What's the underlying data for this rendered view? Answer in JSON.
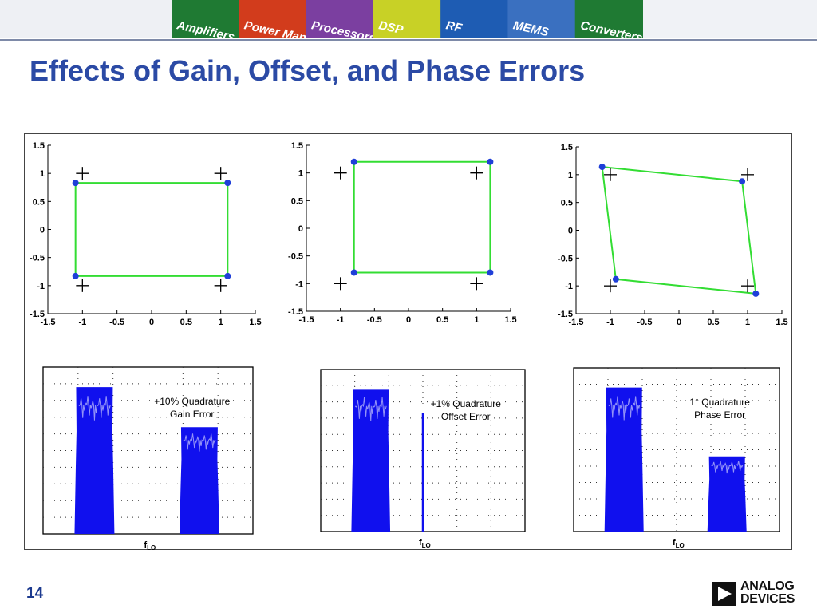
{
  "banner": {
    "labels": [
      "Amplifiers",
      "Power Management",
      "Processors",
      "DSP",
      "RF",
      "MEMS",
      "Converters"
    ],
    "colors": [
      "#1f7a33",
      "#d23c1c",
      "#7b3fa0",
      "#c8d126",
      "#1e5cb3",
      "#3a70c0"
    ]
  },
  "title": "Effects of Gain, Offset, and Phase Errors",
  "page_number": "14",
  "logo": {
    "line1": "ANALOG",
    "line2": "DEVICES"
  },
  "colors": {
    "constellation": "#33dd33",
    "points": "#1f3fd8",
    "spectrum": "#1010ee",
    "title": "#2b4aa5"
  },
  "chart_data": [
    {
      "type": "scatter",
      "xlim": [
        -1.5,
        1.5
      ],
      "ylim": [
        -1.5,
        1.5
      ],
      "xticks": [
        -1.5,
        -1,
        -0.5,
        0,
        0.5,
        1,
        1.5
      ],
      "yticks": [
        1.5,
        1,
        0.5,
        0,
        -0.5,
        -1,
        -1.5
      ],
      "xtick_labels": [
        "-1.5",
        "-1",
        "-0.5",
        "0",
        "0.5",
        "1",
        "1.5"
      ],
      "ytick_labels": [
        "1.5",
        "1",
        "0.5",
        "0",
        "-0.5",
        "-1",
        "-1.5"
      ],
      "ideal_points": [
        [
          -1,
          1
        ],
        [
          1,
          1
        ],
        [
          -1,
          -1
        ],
        [
          1,
          -1
        ]
      ],
      "measured_points": [
        [
          -1.1,
          0.83
        ],
        [
          1.1,
          0.83
        ],
        [
          1.1,
          -0.83
        ],
        [
          -1.1,
          -0.83
        ]
      ]
    },
    {
      "type": "scatter",
      "xlim": [
        -1.5,
        1.5
      ],
      "ylim": [
        -1.5,
        1.5
      ],
      "xticks": [
        -1.5,
        -1,
        -0.5,
        0,
        0.5,
        1,
        1.5
      ],
      "yticks": [
        1.5,
        1,
        0.5,
        0,
        -0.5,
        -1,
        -1.5
      ],
      "xtick_labels": [
        "-1.5",
        "-1",
        "-0.5",
        "0",
        "0.5",
        "1",
        "1.5"
      ],
      "ytick_labels": [
        "1.5",
        "1",
        "0.5",
        "0",
        "-0.5",
        "-1",
        "-1.5"
      ],
      "ideal_points": [
        [
          -1,
          1
        ],
        [
          1,
          1
        ],
        [
          -1,
          -1
        ],
        [
          1,
          -1
        ]
      ],
      "measured_points": [
        [
          -0.8,
          1.2
        ],
        [
          1.2,
          1.2
        ],
        [
          1.2,
          -0.8
        ],
        [
          -0.8,
          -0.8
        ]
      ]
    },
    {
      "type": "scatter",
      "xlim": [
        -1.5,
        1.5
      ],
      "ylim": [
        -1.5,
        1.5
      ],
      "xticks": [
        -1.5,
        -1,
        -0.5,
        0,
        0.5,
        1,
        1.5
      ],
      "yticks": [
        1.5,
        1,
        0.5,
        0,
        -0.5,
        -1,
        -1.5
      ],
      "xtick_labels": [
        "-1.5",
        "-1",
        "-0.5",
        "0",
        "0.5",
        "1",
        "1.5"
      ],
      "ytick_labels": [
        "1.5",
        "1",
        "0.5",
        "0",
        "-0.5",
        "-1",
        "-1.5"
      ],
      "ideal_points": [
        [
          -1,
          1
        ],
        [
          1,
          1
        ],
        [
          -1,
          -1
        ],
        [
          1,
          -1
        ]
      ],
      "measured_points": [
        [
          -1.12,
          1.14
        ],
        [
          0.92,
          0.88
        ],
        [
          1.12,
          -1.14
        ],
        [
          -0.92,
          -0.88
        ]
      ]
    },
    {
      "type": "area",
      "annotation": [
        "+10% Quadrature",
        "Gain Error"
      ],
      "x_label_main": "f",
      "x_label_sub": "LO",
      "xlim": [
        0,
        1
      ],
      "ylim": [
        0,
        1
      ],
      "bands": [
        {
          "start": 0.15,
          "end": 0.34,
          "level": 0.88
        },
        {
          "start": 0.65,
          "end": 0.84,
          "level": 0.64
        }
      ],
      "spikes": []
    },
    {
      "type": "area",
      "annotation": [
        "+1% Quadrature",
        "Offset Error"
      ],
      "x_label_main": "f",
      "x_label_sub": "LO",
      "xlim": [
        0,
        1
      ],
      "ylim": [
        0,
        1
      ],
      "bands": [
        {
          "start": 0.15,
          "end": 0.34,
          "level": 0.88
        }
      ],
      "spikes": [
        {
          "x": 0.5,
          "level": 0.73
        }
      ]
    },
    {
      "type": "area",
      "annotation": [
        "1° Quadrature",
        "Phase Error"
      ],
      "x_label_main": "f",
      "x_label_sub": "LO",
      "xlim": [
        0,
        1
      ],
      "ylim": [
        0,
        1
      ],
      "bands": [
        {
          "start": 0.15,
          "end": 0.34,
          "level": 0.88
        },
        {
          "start": 0.65,
          "end": 0.84,
          "level": 0.46
        }
      ],
      "spikes": []
    }
  ]
}
